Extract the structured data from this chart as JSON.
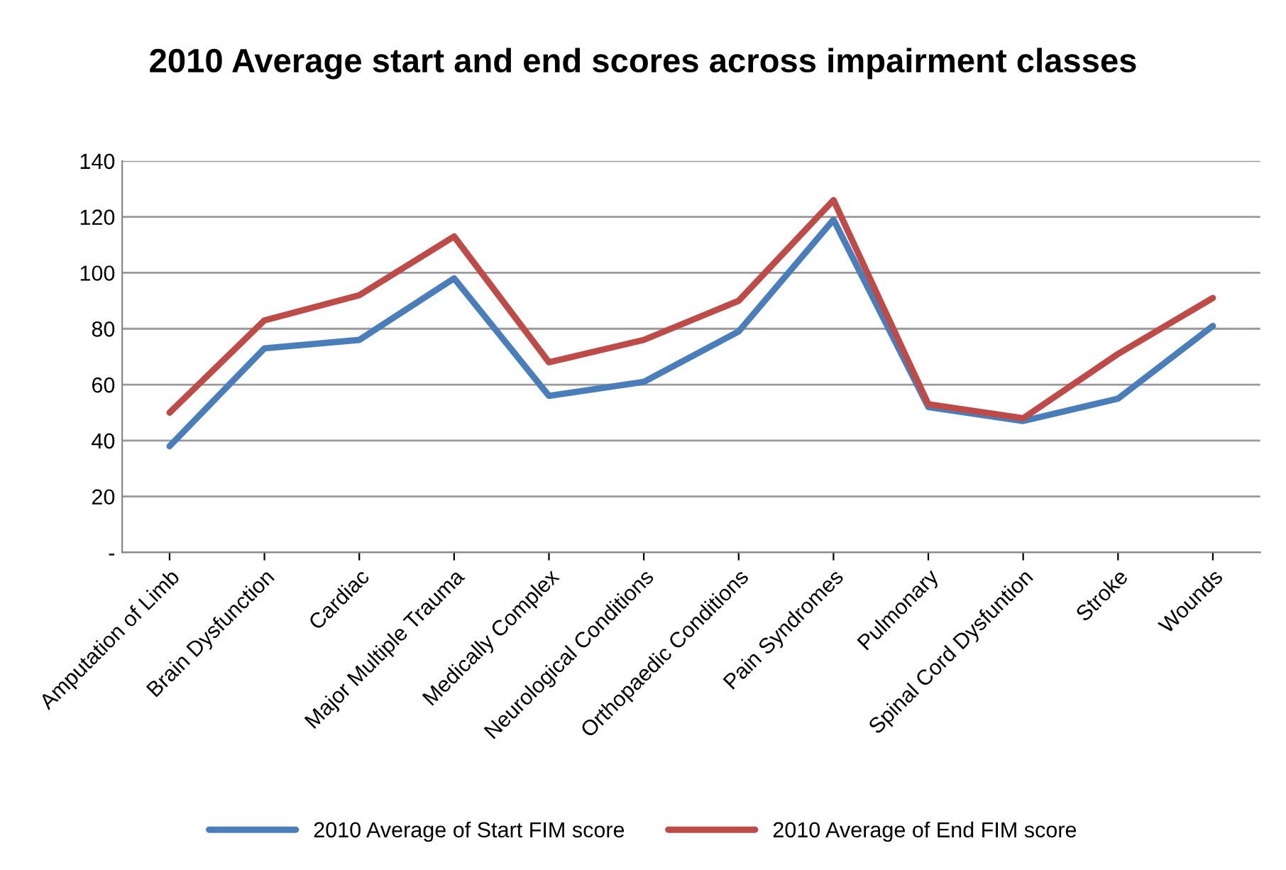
{
  "chart_data": {
    "type": "line",
    "title": "2010 Average start and end scores across impairment classes",
    "categories": [
      "Amputation of Limb",
      "Brain Dysfunction",
      "Cardiac",
      "Major Multiple Trauma",
      "Medically Complex",
      "Neurological Conditions",
      "Orthopaedic Conditions",
      "Pain Syndromes",
      "Pulmonary",
      "Spinal Cord Dysfuntion",
      "Stroke",
      "Wounds"
    ],
    "series": [
      {
        "name": "2010 Average of Start FIM score",
        "color": "#4a7ebb",
        "values": [
          38,
          73,
          76,
          98,
          56,
          61,
          79,
          119,
          52,
          47,
          55,
          81
        ]
      },
      {
        "name": "2010 Average of End FIM score",
        "color": "#be4b48",
        "values": [
          50,
          83,
          92,
          113,
          68,
          76,
          90,
          126,
          53,
          48,
          71,
          91
        ]
      }
    ],
    "ylim": [
      0,
      140
    ],
    "yticks": [
      {
        "value": 0,
        "label": "-"
      },
      20,
      40,
      60,
      80,
      100,
      120,
      140
    ],
    "grid": "y",
    "legend": "bottom",
    "marker": "none",
    "line_style": "solid"
  }
}
